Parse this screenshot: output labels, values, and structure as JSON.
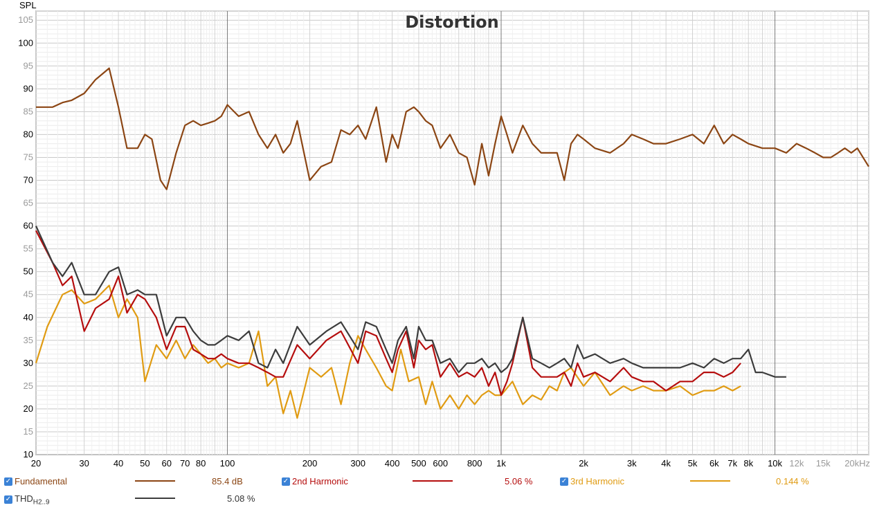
{
  "chart_data": {
    "type": "line",
    "title": "Distortion",
    "ylabel": "SPL",
    "xscale": "log",
    "xlim": [
      20,
      22000
    ],
    "ylim": [
      10,
      107
    ],
    "x_ticks": [
      "20",
      "30",
      "40",
      "50",
      "60",
      "70",
      "80",
      "100",
      "200",
      "300",
      "400",
      "500",
      "600",
      "800",
      "1k",
      "2k",
      "3k",
      "4k",
      "5k",
      "6k",
      "7k",
      "8k",
      "10k",
      "12k",
      "15k",
      "20kHz"
    ],
    "x_tick_values": [
      20,
      30,
      40,
      50,
      60,
      70,
      80,
      100,
      200,
      300,
      400,
      500,
      600,
      800,
      1000,
      2000,
      3000,
      4000,
      5000,
      6000,
      7000,
      8000,
      10000,
      12000,
      15000,
      20000
    ],
    "y_ticks": [
      10,
      15,
      20,
      25,
      30,
      35,
      40,
      45,
      50,
      55,
      60,
      65,
      70,
      75,
      80,
      85,
      90,
      95,
      100,
      105
    ],
    "series": [
      {
        "name": "Fundamental",
        "color": "#8b4513",
        "value_label": "85.4 dB",
        "x": [
          20,
          23,
          25,
          27,
          30,
          33,
          37,
          40,
          43,
          47,
          50,
          53,
          57,
          60,
          65,
          70,
          75,
          80,
          85,
          90,
          95,
          100,
          110,
          120,
          130,
          140,
          150,
          160,
          170,
          180,
          200,
          220,
          240,
          260,
          280,
          300,
          320,
          350,
          380,
          400,
          420,
          450,
          480,
          500,
          530,
          560,
          600,
          650,
          700,
          750,
          800,
          850,
          900,
          950,
          1000,
          1050,
          1100,
          1200,
          1300,
          1400,
          1500,
          1600,
          1700,
          1800,
          1900,
          2000,
          2200,
          2500,
          2800,
          3000,
          3300,
          3600,
          4000,
          4500,
          5000,
          5500,
          6000,
          6500,
          7000,
          7500,
          8000,
          9000,
          10000,
          11000,
          12000,
          13000,
          14000,
          15000,
          16000,
          17000,
          18000,
          19000,
          20000,
          22000
        ],
        "values": [
          86,
          86,
          87,
          87.5,
          89,
          92,
          94.5,
          86,
          77,
          77,
          80,
          79,
          70,
          68,
          76,
          82,
          83,
          82,
          82.5,
          83,
          84,
          86.5,
          84,
          85,
          80,
          77,
          80,
          76,
          78,
          83,
          70,
          73,
          74,
          81,
          80,
          82,
          79,
          86,
          74,
          80,
          77,
          85,
          86,
          85,
          83,
          82,
          77,
          80,
          76,
          75,
          69,
          78,
          71,
          78,
          84,
          80,
          76,
          82,
          78,
          76,
          76,
          76,
          70,
          78,
          80,
          79,
          77,
          76,
          78,
          80,
          79,
          78,
          78,
          79,
          80,
          78,
          82,
          78,
          80,
          79,
          78,
          77,
          77,
          76,
          78,
          77,
          76,
          75,
          75,
          76,
          77,
          76,
          77,
          73
        ]
      },
      {
        "name": "2nd Harmonic",
        "color": "#b50d0d",
        "value_label": "5.06 %",
        "x": [
          20,
          23,
          25,
          27,
          30,
          33,
          37,
          40,
          43,
          47,
          50,
          55,
          60,
          65,
          70,
          75,
          80,
          85,
          90,
          95,
          100,
          110,
          120,
          130,
          140,
          150,
          160,
          180,
          200,
          230,
          260,
          300,
          320,
          350,
          380,
          400,
          420,
          450,
          480,
          500,
          530,
          560,
          600,
          650,
          700,
          750,
          800,
          850,
          900,
          950,
          1000,
          1050,
          1100,
          1200,
          1300,
          1400,
          1500,
          1600,
          1700,
          1800,
          1900,
          2000,
          2200,
          2500,
          2800,
          3000,
          3300,
          3600,
          4000,
          4500,
          5000,
          5500,
          6000,
          6500,
          7000,
          7500
        ],
        "values": [
          59,
          52,
          47,
          49,
          37,
          42,
          44,
          49,
          41,
          45,
          44,
          40,
          33,
          38,
          38,
          33,
          32,
          31,
          31,
          32,
          31,
          30,
          30,
          29,
          28,
          27,
          27,
          34,
          31,
          35,
          37,
          30,
          37,
          36,
          31,
          28,
          33,
          37,
          29,
          35,
          33,
          34,
          27,
          30,
          27,
          28,
          27,
          29,
          25,
          28,
          23,
          26,
          30,
          40,
          29,
          27,
          27,
          27,
          28,
          25,
          30,
          27,
          28,
          26,
          29,
          27,
          26,
          26,
          24,
          26,
          26,
          28,
          28,
          27,
          28,
          30
        ]
      },
      {
        "name": "3rd Harmonic",
        "color": "#e09b12",
        "value_label": "0.144 %",
        "x": [
          20,
          22,
          25,
          27,
          30,
          33,
          37,
          40,
          43,
          47,
          50,
          55,
          60,
          65,
          70,
          75,
          80,
          85,
          90,
          95,
          100,
          110,
          120,
          130,
          140,
          150,
          160,
          170,
          180,
          200,
          220,
          240,
          260,
          280,
          300,
          320,
          350,
          380,
          400,
          430,
          460,
          500,
          530,
          560,
          600,
          650,
          700,
          750,
          800,
          850,
          900,
          950,
          1000,
          1100,
          1200,
          1300,
          1400,
          1500,
          1600,
          1700,
          1800,
          2000,
          2200,
          2500,
          2800,
          3000,
          3300,
          3600,
          4000,
          4500,
          5000,
          5500,
          6000,
          6500,
          7000,
          7500
        ],
        "values": [
          30,
          38,
          45,
          46,
          43,
          44,
          47,
          40,
          44,
          40,
          26,
          34,
          31,
          35,
          31,
          34,
          32,
          30,
          31,
          29,
          30,
          29,
          30,
          37,
          25,
          27,
          19,
          24,
          18,
          29,
          27,
          29,
          21,
          30,
          36,
          33,
          29,
          25,
          24,
          33,
          26,
          27,
          21,
          26,
          20,
          23,
          20,
          23,
          21,
          23,
          24,
          23,
          23,
          26,
          21,
          23,
          22,
          25,
          24,
          28,
          29,
          25,
          28,
          23,
          25,
          24,
          25,
          24,
          24,
          25,
          23,
          24,
          24,
          25,
          24,
          25
        ]
      },
      {
        "name": "THD",
        "color": "#3c3c3c",
        "value_label": "5.08 %",
        "x": [
          20,
          23,
          25,
          27,
          30,
          33,
          37,
          40,
          43,
          47,
          50,
          55,
          60,
          65,
          70,
          75,
          80,
          85,
          90,
          95,
          100,
          110,
          120,
          130,
          140,
          150,
          160,
          180,
          200,
          230,
          260,
          300,
          320,
          350,
          380,
          400,
          420,
          450,
          480,
          500,
          530,
          560,
          600,
          650,
          700,
          750,
          800,
          850,
          900,
          950,
          1000,
          1050,
          1100,
          1200,
          1300,
          1400,
          1500,
          1600,
          1700,
          1800,
          1900,
          2000,
          2200,
          2500,
          2800,
          3000,
          3300,
          3600,
          4000,
          4500,
          5000,
          5500,
          6000,
          6500,
          7000,
          7500,
          8000,
          8500,
          9000,
          10000,
          11000
        ],
        "values": [
          60,
          52,
          49,
          52,
          45,
          45,
          50,
          51,
          45,
          46,
          45,
          45,
          36,
          40,
          40,
          37,
          35,
          34,
          34,
          35,
          36,
          35,
          37,
          30,
          29,
          33,
          30,
          38,
          34,
          37,
          39,
          33,
          39,
          38,
          33,
          30,
          35,
          38,
          31,
          38,
          35,
          35,
          30,
          31,
          28,
          30,
          30,
          31,
          29,
          30,
          28,
          29,
          31,
          40,
          31,
          30,
          29,
          30,
          31,
          29,
          34,
          31,
          32,
          30,
          31,
          30,
          29,
          29,
          29,
          29,
          30,
          29,
          31,
          30,
          31,
          31,
          33,
          28,
          28,
          27,
          27
        ]
      }
    ]
  },
  "legend": {
    "fundamental": {
      "label": "Fundamental",
      "value": "85.4 dB"
    },
    "second": {
      "label": "2nd Harmonic",
      "value": "5.06 %"
    },
    "third": {
      "label": "3rd Harmonic",
      "value": "0.144 %"
    },
    "thd": {
      "label": "THD",
      "sub": "H2..9",
      "value": "5.08 %"
    }
  },
  "checkbox_glyph": "✓"
}
